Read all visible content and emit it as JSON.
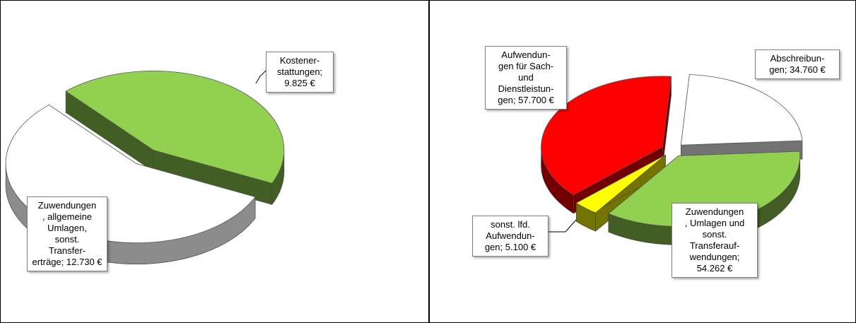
{
  "chart_data": [
    {
      "type": "pie",
      "separator": ";",
      "categories": [
        "Kostener-\nstattungen",
        "Zuwendungen\n, allgemeine\nUmlagen,\nsonst.\nTransfer-\nerträge"
      ],
      "values": [
        9825,
        12730
      ],
      "value_labels": [
        "9.825 €",
        "12.730 €"
      ],
      "colors": [
        "#92d050",
        "#ffffff"
      ]
    },
    {
      "type": "pie",
      "separator": ";",
      "categories": [
        "Abschreibun-\ngen",
        "Zuwendungen\n, Umlagen und\nsonst.\nTransferauf-\nwendungen",
        "sonst. lfd.\nAufwendun-\ngen",
        "Aufwendun-\ngen für Sach-\nund\nDienstleistun-\ngen"
      ],
      "values": [
        34760,
        54262,
        5100,
        57700
      ],
      "value_labels": [
        "34.760 €",
        "54.262 €",
        "5.100 €",
        "57.700 €"
      ],
      "colors": [
        "#ffffff",
        "#92d050",
        "#ffff00",
        "#ff0000"
      ]
    }
  ]
}
